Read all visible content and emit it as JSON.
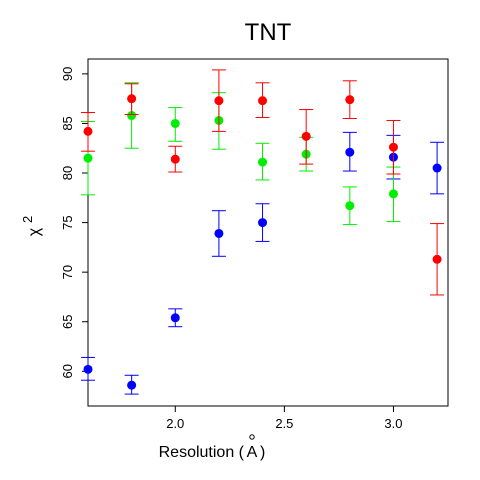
{
  "chart_data": {
    "type": "scatter",
    "title": "TNT",
    "xlabel": "Resolution (Å)",
    "xlabel_text": "Resolution (",
    "xlabel_unit": "A",
    "xlabel_close": ")",
    "ylabel_base": "χ",
    "ylabel_sup": "2",
    "xlim": [
      1.6,
      3.25
    ],
    "ylim": [
      56.5,
      91.5
    ],
    "xticks": [
      2.0,
      2.5,
      3.0
    ],
    "xtick_labels": [
      "2.0",
      "2.5",
      "3.0"
    ],
    "yticks": [
      60,
      65,
      70,
      75,
      80,
      85,
      90
    ],
    "ytick_labels": [
      "60",
      "65",
      "70",
      "75",
      "80",
      "85",
      "90"
    ],
    "grid": false,
    "series": [
      {
        "name": "blue",
        "color": "#0000ff",
        "points": [
          {
            "x": 1.6,
            "y": 60.2,
            "lo": 59.1,
            "hi": 61.4
          },
          {
            "x": 1.8,
            "y": 58.6,
            "lo": 57.7,
            "hi": 59.6
          },
          {
            "x": 2.0,
            "y": 65.4,
            "lo": 64.5,
            "hi": 66.3
          },
          {
            "x": 2.2,
            "y": 73.9,
            "lo": 71.6,
            "hi": 76.2
          },
          {
            "x": 2.4,
            "y": 75.0,
            "lo": 73.1,
            "hi": 76.9
          },
          {
            "x": 2.8,
            "y": 82.1,
            "lo": 80.2,
            "hi": 84.1
          },
          {
            "x": 3.0,
            "y": 81.6,
            "lo": 79.4,
            "hi": 83.8
          },
          {
            "x": 3.2,
            "y": 80.5,
            "lo": 77.9,
            "hi": 83.1
          }
        ]
      },
      {
        "name": "green",
        "color": "#00ee00",
        "points": [
          {
            "x": 1.6,
            "y": 81.5,
            "lo": 77.8,
            "hi": 85.2
          },
          {
            "x": 1.8,
            "y": 85.8,
            "lo": 82.5,
            "hi": 89.1
          },
          {
            "x": 2.0,
            "y": 85.0,
            "lo": 83.2,
            "hi": 86.6
          },
          {
            "x": 2.2,
            "y": 85.3,
            "lo": 82.4,
            "hi": 88.1
          },
          {
            "x": 2.4,
            "y": 81.1,
            "lo": 79.3,
            "hi": 83.0
          },
          {
            "x": 2.6,
            "y": 81.9,
            "lo": 80.2,
            "hi": 83.6
          },
          {
            "x": 2.8,
            "y": 76.7,
            "lo": 74.8,
            "hi": 78.6
          },
          {
            "x": 3.0,
            "y": 77.9,
            "lo": 75.1,
            "hi": 80.6
          }
        ]
      },
      {
        "name": "red",
        "color": "#ff0000",
        "points": [
          {
            "x": 1.6,
            "y": 84.2,
            "lo": 82.2,
            "hi": 86.1
          },
          {
            "x": 1.8,
            "y": 87.5,
            "lo": 85.9,
            "hi": 89.0
          },
          {
            "x": 2.0,
            "y": 81.4,
            "lo": 80.1,
            "hi": 82.7
          },
          {
            "x": 2.2,
            "y": 87.3,
            "lo": 84.2,
            "hi": 90.4
          },
          {
            "x": 2.4,
            "y": 87.3,
            "lo": 85.6,
            "hi": 89.1
          },
          {
            "x": 2.6,
            "y": 83.7,
            "lo": 80.9,
            "hi": 86.4
          },
          {
            "x": 2.8,
            "y": 87.4,
            "lo": 85.5,
            "hi": 89.3
          },
          {
            "x": 3.0,
            "y": 82.6,
            "lo": 79.9,
            "hi": 85.3
          },
          {
            "x": 3.2,
            "y": 71.3,
            "lo": 67.7,
            "hi": 74.9
          }
        ]
      }
    ]
  }
}
